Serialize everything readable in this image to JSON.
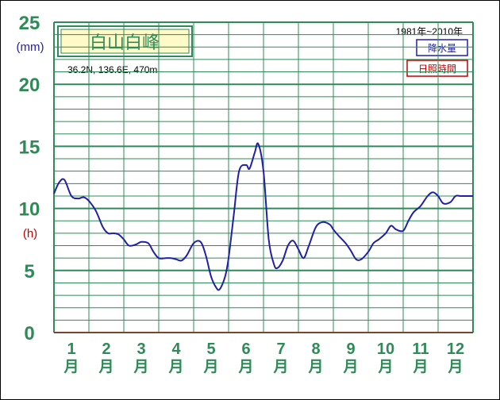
{
  "station": {
    "title": "白山白峰",
    "coords": "36.2N,  136.6E,  470m",
    "period": "1981年~2010年"
  },
  "legend": {
    "precip": "降水量",
    "sunshine": "日照時間"
  },
  "units": {
    "left": "(mm)",
    "right": "(h)"
  },
  "axis": {
    "yticks": [
      "25",
      "20",
      "15",
      "10",
      "5",
      "0"
    ],
    "months": [
      {
        "num": "1",
        "kanji": "月"
      },
      {
        "num": "2",
        "kanji": "月"
      },
      {
        "num": "3",
        "kanji": "月"
      },
      {
        "num": "4",
        "kanji": "月"
      },
      {
        "num": "5",
        "kanji": "月"
      },
      {
        "num": "6",
        "kanji": "月"
      },
      {
        "num": "7",
        "kanji": "月"
      },
      {
        "num": "8",
        "kanji": "月"
      },
      {
        "num": "9",
        "kanji": "月"
      },
      {
        "num": "10",
        "kanji": "月"
      },
      {
        "num": "11",
        "kanji": "月"
      },
      {
        "num": "12",
        "kanji": "月"
      }
    ]
  },
  "colors": {
    "grid": "#2e8b57",
    "precip_line": "#1f1fa8",
    "sunshine_line": "#c00000",
    "title_bg": "#fffac8"
  },
  "chart_data": {
    "type": "line",
    "title": "白山白峰",
    "xlabel": "",
    "ylabel": "(mm)",
    "xlim": [
      1,
      13
    ],
    "ylim": [
      0,
      25
    ],
    "grid": true,
    "legend_position": "top-right",
    "series": [
      {
        "name": "降水量",
        "x": [
          1.0,
          1.15,
          1.3,
          1.5,
          1.7,
          1.85,
          2.0,
          2.2,
          2.4,
          2.55,
          2.7,
          2.85,
          3.0,
          3.15,
          3.35,
          3.5,
          3.7,
          3.85,
          4.0,
          4.2,
          4.35,
          4.5,
          4.65,
          4.8,
          5.0,
          5.2,
          5.35,
          5.5,
          5.65,
          5.75,
          5.9,
          6.0,
          6.15,
          6.3,
          6.5,
          6.6,
          6.75,
          6.85,
          7.0,
          7.15,
          7.3,
          7.4,
          7.55,
          7.7,
          7.85,
          8.0,
          8.15,
          8.3,
          8.5,
          8.7,
          8.9,
          9.0,
          9.15,
          9.35,
          9.5,
          9.65,
          9.8,
          10.0,
          10.15,
          10.3,
          10.5,
          10.65,
          10.8,
          11.0,
          11.15,
          11.3,
          11.5,
          11.7,
          11.85,
          12.0,
          12.15,
          12.35,
          12.5,
          12.65,
          12.8,
          13.0
        ],
        "y": [
          11.2,
          12.1,
          12.3,
          11.0,
          10.8,
          10.9,
          10.6,
          9.8,
          8.5,
          8.0,
          8.0,
          7.9,
          7.5,
          7.0,
          7.1,
          7.3,
          7.2,
          6.5,
          6.0,
          6.0,
          6.0,
          5.9,
          5.8,
          6.2,
          7.2,
          7.3,
          6.2,
          4.5,
          3.6,
          3.5,
          4.5,
          6.0,
          9.5,
          13.0,
          13.5,
          13.2,
          14.5,
          15.2,
          13.0,
          7.5,
          5.5,
          5.2,
          5.8,
          7.0,
          7.4,
          6.7,
          6.0,
          7.0,
          8.5,
          8.9,
          8.7,
          8.3,
          7.8,
          7.2,
          6.6,
          5.9,
          5.9,
          6.5,
          7.2,
          7.5,
          8.0,
          8.6,
          8.3,
          8.2,
          9.0,
          9.7,
          10.2,
          11.0,
          11.3,
          11.0,
          10.4,
          10.5,
          11.0,
          11.0,
          11.0,
          11.0
        ]
      }
    ]
  }
}
